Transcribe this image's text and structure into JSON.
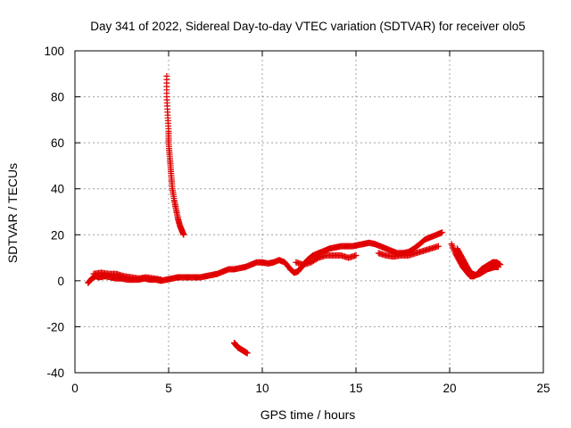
{
  "chart_data": {
    "type": "scatter",
    "title": "Day 341 of 2022, Sidereal Day-to-day VTEC variation (SDTVAR) for receiver olo5",
    "xlabel": "GPS time / hours",
    "ylabel": "SDTVAR / TECUs",
    "xlim": [
      0,
      25
    ],
    "ylim": [
      -40,
      100
    ],
    "xticks": [
      0,
      5,
      10,
      15,
      20,
      25
    ],
    "yticks": [
      -40,
      -20,
      0,
      20,
      40,
      60,
      80,
      100
    ],
    "grid": true,
    "marker": "+",
    "series": [
      {
        "name": "SDTVAR",
        "color": "#e00000",
        "segments": [
          {
            "label": "main trace",
            "x": [
              0.7,
              0.9,
              1.1,
              1.3,
              1.6,
              1.9,
              2.2,
              2.5,
              2.8,
              3.1,
              3.4,
              3.7,
              4.0,
              4.3,
              4.6,
              4.9,
              5.2,
              5.5,
              5.8,
              6.1,
              6.4,
              6.7,
              7.0,
              7.3,
              7.6,
              7.9,
              8.2,
              8.5,
              8.8,
              9.1,
              9.4,
              9.7,
              10.0,
              10.3,
              10.6,
              10.9,
              11.2,
              11.5,
              11.7,
              11.9,
              12.1,
              12.4,
              12.7,
              13.0,
              13.3,
              13.6,
              13.9,
              14.2,
              14.5,
              14.8,
              15.1,
              15.4,
              15.7,
              16.0,
              16.3,
              16.6,
              16.9,
              17.2,
              17.5,
              17.8,
              18.1,
              18.4,
              18.7,
              19.0,
              19.3,
              19.6
            ],
            "y": [
              -1,
              1,
              2,
              1.5,
              2,
              1.5,
              1,
              1,
              0.5,
              0.5,
              0.5,
              1,
              0.5,
              0.5,
              0,
              0.5,
              1,
              1.5,
              1.5,
              1.5,
              1.5,
              1.5,
              2,
              2.5,
              3,
              4,
              5,
              5,
              5.5,
              6,
              7,
              8,
              8,
              7.5,
              8,
              9,
              8,
              5,
              3.5,
              4,
              6,
              9,
              11,
              12,
              13,
              14,
              14.5,
              15,
              15,
              15,
              15.5,
              16,
              16.5,
              16,
              15,
              14,
              13,
              12,
              12,
              12.5,
              14,
              16,
              18,
              19,
              20,
              21
            ]
          },
          {
            "label": "lower band 11-15h",
            "x": [
              11.8,
              12.2,
              12.6,
              13.0,
              13.4,
              13.8,
              14.2,
              14.6,
              15.0
            ],
            "y": [
              8,
              7,
              8,
              10,
              11,
              11,
              11,
              10,
              11
            ]
          },
          {
            "label": "lower band 15.5-19.5h",
            "x": [
              16.2,
              16.6,
              17.0,
              17.4,
              17.8,
              18.2,
              18.6,
              19.0,
              19.4
            ],
            "y": [
              12,
              11,
              10.5,
              11,
              11,
              12,
              13,
              14,
              15
            ]
          },
          {
            "label": "noise band 1-5h",
            "x": [
              1.0,
              1.4,
              1.8,
              2.2,
              2.6,
              3.0,
              3.4,
              3.8,
              4.2,
              4.6
            ],
            "y": [
              3,
              3.5,
              3,
              3,
              2,
              1.5,
              1,
              1.5,
              1,
              0.5
            ]
          },
          {
            "label": "late trace",
            "x": [
              20.1,
              20.3,
              20.5,
              20.7,
              20.9,
              21.1,
              21.3,
              21.5,
              21.7,
              21.9,
              22.1,
              22.3,
              22.5,
              22.7
            ],
            "y": [
              16,
              12,
              9,
              6,
              4,
              2,
              2,
              3,
              5,
              6,
              7,
              8,
              8,
              7
            ]
          },
          {
            "label": "late lower trace",
            "x": [
              20.4,
              20.6,
              20.8,
              21.0,
              21.2,
              21.4,
              21.6,
              21.8,
              22.0,
              22.2,
              22.4,
              22.6
            ],
            "y": [
              14,
              11,
              8,
              5,
              3,
              2.5,
              3,
              4,
              5,
              5.5,
              6,
              6
            ]
          },
          {
            "label": "spike 5h",
            "x": [
              4.9,
              4.9,
              4.95,
              5.0,
              5.0,
              5.05,
              5.1,
              5.15,
              5.2,
              5.3,
              5.4,
              5.5,
              5.6,
              5.7,
              5.8
            ],
            "y": [
              89,
              80,
              72,
              65,
              60,
              55,
              50,
              45,
              40,
              35,
              31,
              27,
              24,
              22,
              20
            ]
          },
          {
            "label": "negative trace 8.5-9.2h",
            "x": [
              8.5,
              8.6,
              8.7,
              8.8,
              8.9,
              9.0,
              9.1,
              9.2
            ],
            "y": [
              -27,
              -28,
              -29,
              -29.5,
              -30,
              -30.5,
              -31,
              -31.5
            ]
          }
        ]
      }
    ]
  }
}
